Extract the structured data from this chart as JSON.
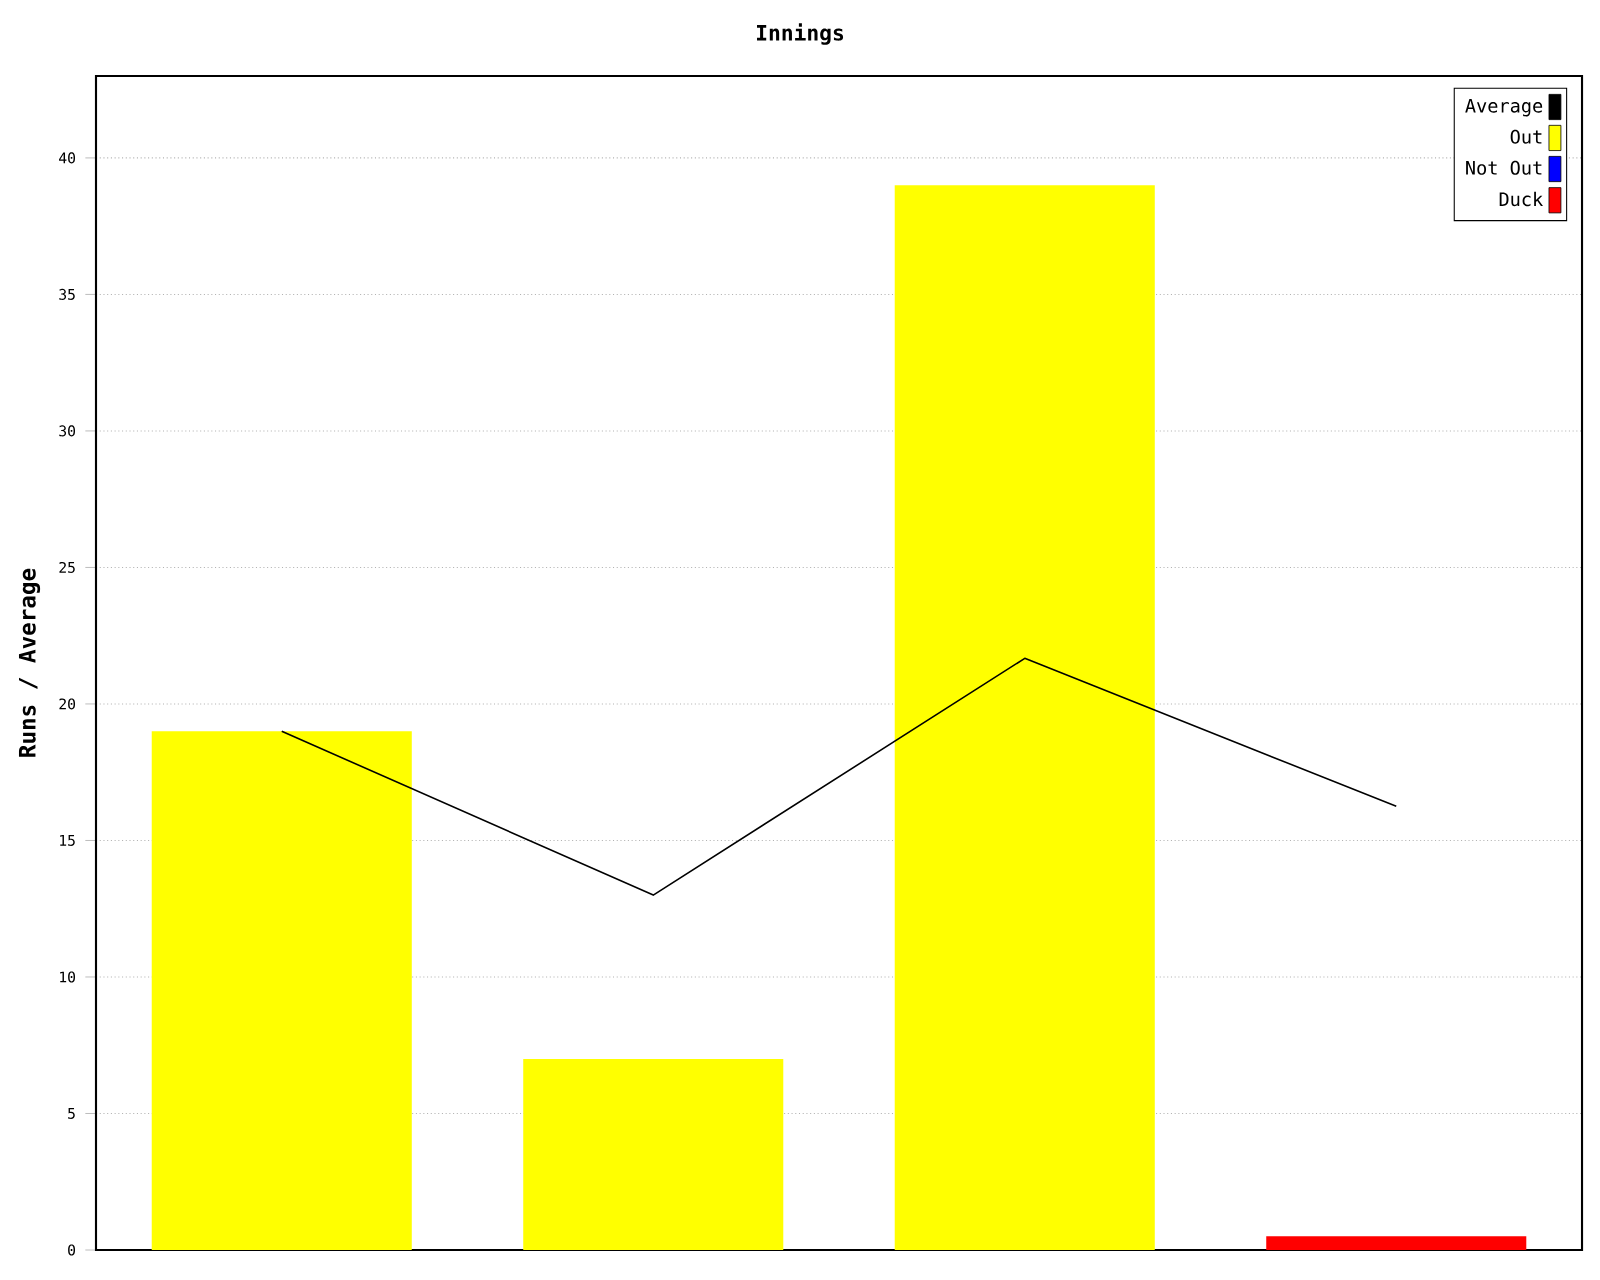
{
  "chart_data": {
    "type": "bar",
    "title": "Innings",
    "ylabel": "Runs / Average",
    "categories": [
      null,
      null,
      null,
      null
    ],
    "series": [
      {
        "name": "Average",
        "type": "line",
        "color": "#000000",
        "values": [
          19,
          13,
          21.67,
          16.25
        ]
      },
      {
        "name": "Out",
        "color": "#ffff00",
        "values": [
          19,
          7,
          39,
          null
        ]
      },
      {
        "name": "Not Out",
        "color": "#0000ff",
        "values": [
          null,
          null,
          null,
          null
        ]
      },
      {
        "name": "Duck",
        "color": "#ff0000",
        "values": [
          null,
          null,
          null,
          0.5
        ]
      }
    ],
    "ylim": [
      0,
      43
    ],
    "yticks": [
      0,
      5,
      10,
      15,
      20,
      25,
      30,
      35,
      40
    ],
    "grid": "y",
    "legend": "top right",
    "marker": "none"
  }
}
